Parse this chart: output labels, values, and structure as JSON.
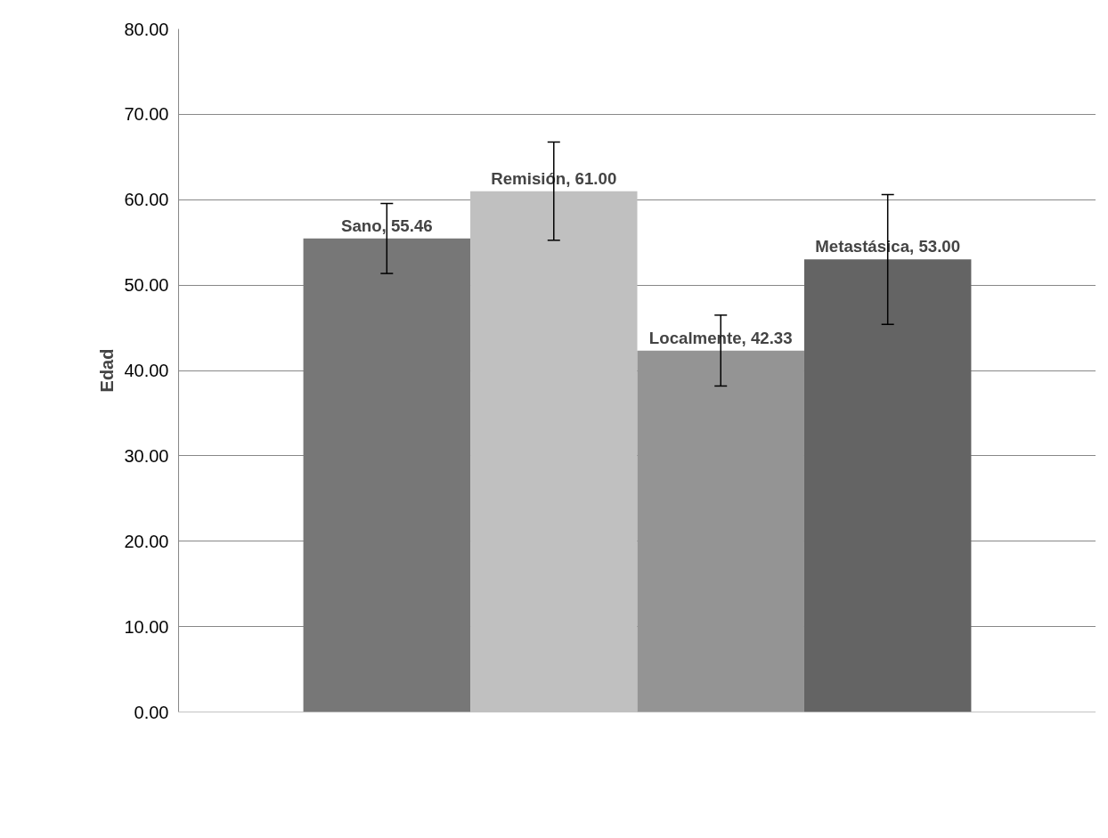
{
  "chart_data": {
    "type": "bar",
    "ylabel": "Edad",
    "categories": [
      null
    ],
    "series": [
      {
        "color": "#777777",
        "values": [
          55.46
        ],
        "errors": [
          4.1
        ],
        "value_labels": [
          "Sano, 55.46"
        ]
      },
      {
        "color": "#c0c0c0",
        "values": [
          61.0
        ],
        "errors": [
          5.75
        ],
        "value_labels": [
          "Remisión, 61.00"
        ]
      },
      {
        "color": "#949494",
        "values": [
          42.33
        ],
        "errors": [
          4.15
        ],
        "value_labels": [
          "Localmente, 42.33"
        ]
      },
      {
        "color": "#646464",
        "values": [
          53.0
        ],
        "errors": [
          7.6
        ],
        "value_labels": [
          "Metastásica, 53.00"
        ]
      }
    ],
    "ylim": [
      0,
      80
    ],
    "yticks": [
      {
        "value": 0,
        "label": "0.00"
      },
      {
        "value": 10,
        "label": "10.00"
      },
      {
        "value": 20,
        "label": "20.00"
      },
      {
        "value": 30,
        "label": "30.00"
      },
      {
        "value": 40,
        "label": "40.00"
      },
      {
        "value": 50,
        "label": "50.00"
      },
      {
        "value": 60,
        "label": "60.00"
      },
      {
        "value": 70,
        "label": "70.00"
      },
      {
        "value": 80,
        "label": "80.00"
      }
    ],
    "grid": "y"
  }
}
